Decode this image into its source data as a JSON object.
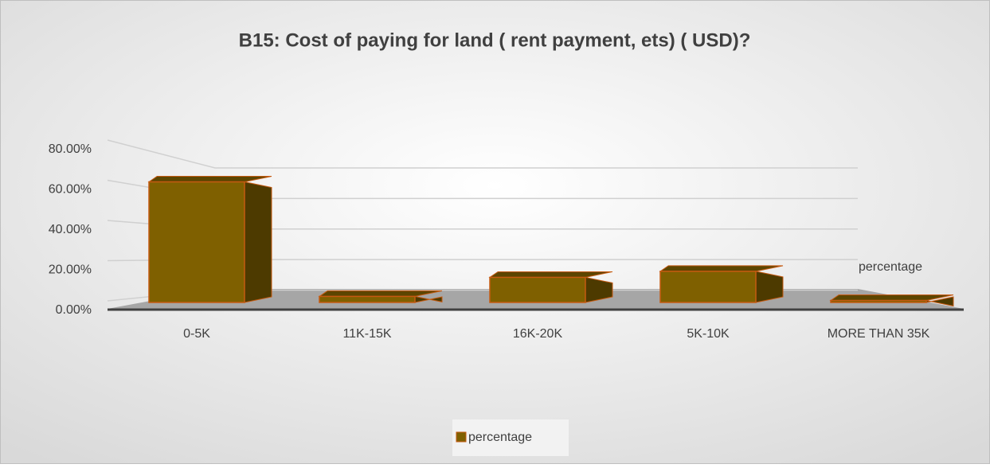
{
  "chart_data": {
    "type": "bar3d",
    "title": "B15: Cost of paying for land ( rent payment, ets) ( USD)?",
    "categories": [
      "0-5K",
      "11K-15K",
      "16K-20K",
      "5K-10K",
      "MORE THAN 35K"
    ],
    "series": [
      {
        "name": "percentage",
        "color": "#7f6000",
        "values": [
          60,
          3,
          12.5,
          15.5,
          1
        ]
      }
    ],
    "ylim": [
      0,
      80
    ],
    "yticks": [
      {
        "value": 0,
        "label": "0.00%"
      },
      {
        "value": 20,
        "label": "20.00%"
      },
      {
        "value": 40,
        "label": "40.00%"
      },
      {
        "value": 60,
        "label": "60.00%"
      },
      {
        "value": 80,
        "label": "80.00%"
      }
    ],
    "grid": true,
    "legend": "bottom"
  }
}
